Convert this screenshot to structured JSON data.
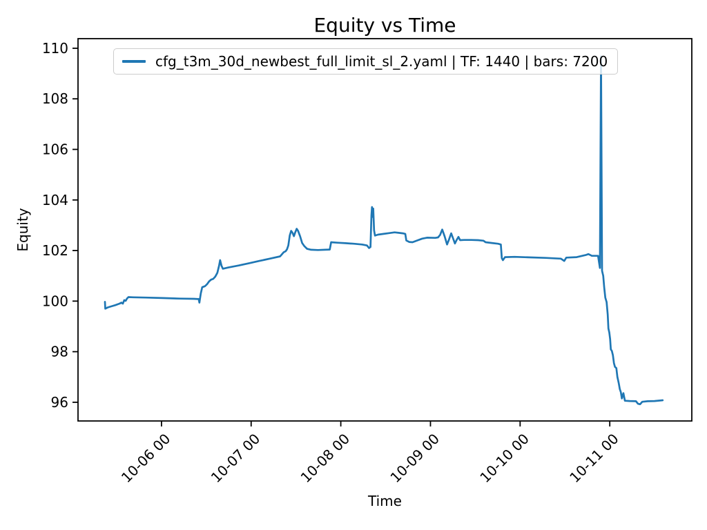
{
  "figure": {
    "background": "#ffffff"
  },
  "chart_data": {
    "type": "line",
    "title": "Equity vs Time",
    "xlabel": "Time",
    "ylabel": "Equity",
    "grid": false,
    "legend": {
      "position": "upper center",
      "entries": [
        {
          "label": "cfg_t3m_30d_newbest_full_limit_sl_2.yaml | TF: 1440 | bars: 7200",
          "color": "#1f77b4"
        }
      ]
    },
    "x_axis": {
      "unit": "days since 10-05 00:00",
      "range": [
        0.069,
        6.915
      ],
      "tick_rotation": 45,
      "ticks": [
        {
          "value": 1,
          "label": "10-06 00"
        },
        {
          "value": 2,
          "label": "10-07 00"
        },
        {
          "value": 3,
          "label": "10-08 00"
        },
        {
          "value": 4,
          "label": "10-09 00"
        },
        {
          "value": 5,
          "label": "10-10 00"
        },
        {
          "value": 6,
          "label": "10-11 00"
        }
      ]
    },
    "y_axis": {
      "range": [
        95.26,
        110.38
      ],
      "ticks": [
        96,
        98,
        100,
        102,
        104,
        106,
        108,
        110
      ]
    },
    "series": [
      {
        "name": "cfg_t3m_30d_newbest_full_limit_sl_2.yaml | TF: 1440 | bars: 7200",
        "color": "#1f77b4",
        "line_width": 2.7,
        "points": [
          [
            0.369,
            99.97
          ],
          [
            0.373,
            99.7
          ],
          [
            0.4,
            99.75
          ],
          [
            0.438,
            99.79
          ],
          [
            0.485,
            99.84
          ],
          [
            0.531,
            99.9
          ],
          [
            0.554,
            99.94
          ],
          [
            0.569,
            99.9
          ],
          [
            0.585,
            100.04
          ],
          [
            0.6,
            100.01
          ],
          [
            0.615,
            100.1
          ],
          [
            0.631,
            100.16
          ],
          [
            0.685,
            100.15
          ],
          [
            0.823,
            100.14
          ],
          [
            1.015,
            100.12
          ],
          [
            1.208,
            100.1
          ],
          [
            1.362,
            100.09
          ],
          [
            1.415,
            100.08
          ],
          [
            1.423,
            99.94
          ],
          [
            1.438,
            100.3
          ],
          [
            1.454,
            100.55
          ],
          [
            1.485,
            100.59
          ],
          [
            1.508,
            100.67
          ],
          [
            1.531,
            100.78
          ],
          [
            1.554,
            100.85
          ],
          [
            1.577,
            100.88
          ],
          [
            1.6,
            100.97
          ],
          [
            1.623,
            101.12
          ],
          [
            1.642,
            101.4
          ],
          [
            1.654,
            101.62
          ],
          [
            1.669,
            101.4
          ],
          [
            1.685,
            101.28
          ],
          [
            1.746,
            101.33
          ],
          [
            1.862,
            101.41
          ],
          [
            1.977,
            101.5
          ],
          [
            2.092,
            101.59
          ],
          [
            2.208,
            101.68
          ],
          [
            2.323,
            101.77
          ],
          [
            2.362,
            101.93
          ],
          [
            2.385,
            101.97
          ],
          [
            2.4,
            102.05
          ],
          [
            2.415,
            102.2
          ],
          [
            2.431,
            102.6
          ],
          [
            2.446,
            102.78
          ],
          [
            2.462,
            102.7
          ],
          [
            2.477,
            102.57
          ],
          [
            2.492,
            102.72
          ],
          [
            2.508,
            102.86
          ],
          [
            2.523,
            102.78
          ],
          [
            2.546,
            102.56
          ],
          [
            2.569,
            102.3
          ],
          [
            2.592,
            102.18
          ],
          [
            2.623,
            102.07
          ],
          [
            2.669,
            102.03
          ],
          [
            2.746,
            102.02
          ],
          [
            2.823,
            102.03
          ],
          [
            2.877,
            102.04
          ],
          [
            2.892,
            102.33
          ],
          [
            2.962,
            102.31
          ],
          [
            3.054,
            102.29
          ],
          [
            3.146,
            102.27
          ],
          [
            3.238,
            102.24
          ],
          [
            3.292,
            102.2
          ],
          [
            3.315,
            102.1
          ],
          [
            3.331,
            102.14
          ],
          [
            3.342,
            103.4
          ],
          [
            3.348,
            103.72
          ],
          [
            3.355,
            103.33
          ],
          [
            3.362,
            103.66
          ],
          [
            3.371,
            102.8
          ],
          [
            3.381,
            102.59
          ],
          [
            3.415,
            102.63
          ],
          [
            3.477,
            102.66
          ],
          [
            3.538,
            102.69
          ],
          [
            3.6,
            102.72
          ],
          [
            3.646,
            102.7
          ],
          [
            3.692,
            102.68
          ],
          [
            3.719,
            102.66
          ],
          [
            3.731,
            102.4
          ],
          [
            3.762,
            102.34
          ],
          [
            3.8,
            102.33
          ],
          [
            3.854,
            102.4
          ],
          [
            3.908,
            102.47
          ],
          [
            3.962,
            102.51
          ],
          [
            4.054,
            102.5
          ],
          [
            4.085,
            102.52
          ],
          [
            4.108,
            102.62
          ],
          [
            4.131,
            102.83
          ],
          [
            4.158,
            102.56
          ],
          [
            4.185,
            102.24
          ],
          [
            4.208,
            102.45
          ],
          [
            4.231,
            102.68
          ],
          [
            4.254,
            102.46
          ],
          [
            4.273,
            102.28
          ],
          [
            4.292,
            102.42
          ],
          [
            4.312,
            102.54
          ],
          [
            4.331,
            102.41
          ],
          [
            4.377,
            102.42
          ],
          [
            4.454,
            102.42
          ],
          [
            4.531,
            102.41
          ],
          [
            4.592,
            102.39
          ],
          [
            4.615,
            102.33
          ],
          [
            4.685,
            102.3
          ],
          [
            4.754,
            102.27
          ],
          [
            4.785,
            102.24
          ],
          [
            4.796,
            101.7
          ],
          [
            4.808,
            101.62
          ],
          [
            4.831,
            101.74
          ],
          [
            4.938,
            101.75
          ],
          [
            5.092,
            101.73
          ],
          [
            5.285,
            101.71
          ],
          [
            5.454,
            101.68
          ],
          [
            5.492,
            101.59
          ],
          [
            5.515,
            101.72
          ],
          [
            5.631,
            101.74
          ],
          [
            5.731,
            101.82
          ],
          [
            5.762,
            101.86
          ],
          [
            5.8,
            101.79
          ],
          [
            5.869,
            101.79
          ],
          [
            5.89,
            101.31
          ],
          [
            5.902,
            109.68
          ],
          [
            5.914,
            101.2
          ],
          [
            5.927,
            101.0
          ],
          [
            5.938,
            100.55
          ],
          [
            5.95,
            100.14
          ],
          [
            5.965,
            99.96
          ],
          [
            5.977,
            99.47
          ],
          [
            5.985,
            98.92
          ],
          [
            5.995,
            98.76
          ],
          [
            6.004,
            98.5
          ],
          [
            6.012,
            98.09
          ],
          [
            6.023,
            98.03
          ],
          [
            6.035,
            97.86
          ],
          [
            6.046,
            97.55
          ],
          [
            6.058,
            97.4
          ],
          [
            6.073,
            97.35
          ],
          [
            6.085,
            97.0
          ],
          [
            6.1,
            96.75
          ],
          [
            6.112,
            96.52
          ],
          [
            6.123,
            96.4
          ],
          [
            6.135,
            96.15
          ],
          [
            6.152,
            96.36
          ],
          [
            6.169,
            96.06
          ],
          [
            6.223,
            96.05
          ],
          [
            6.292,
            96.04
          ],
          [
            6.315,
            95.94
          ],
          [
            6.338,
            95.92
          ],
          [
            6.362,
            96.02
          ],
          [
            6.423,
            96.04
          ],
          [
            6.5,
            96.05
          ],
          [
            6.59,
            96.08
          ]
        ]
      }
    ]
  }
}
